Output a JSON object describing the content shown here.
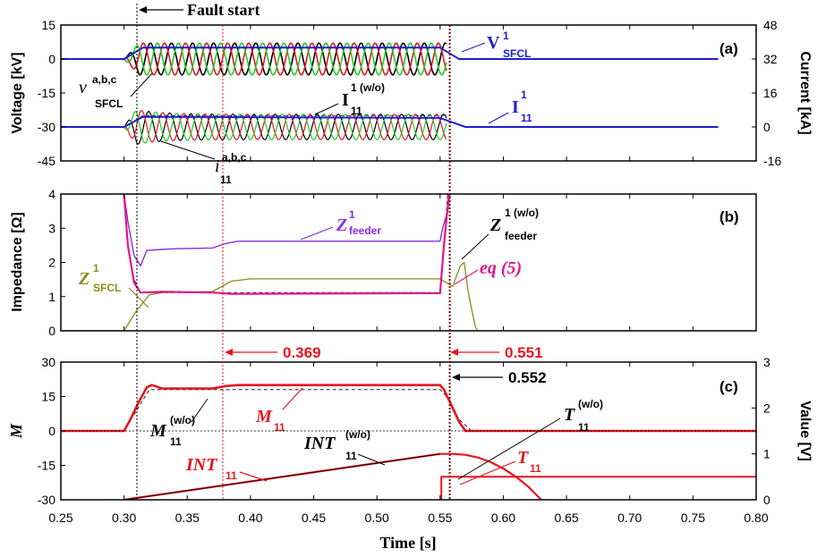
{
  "chart_data": [
    {
      "panel": "(a)",
      "type": "line",
      "ylabel": "Voltage [kV]",
      "ylabel_right": "Current [kA]",
      "xlim": [
        0.25,
        0.8
      ],
      "ylim": [
        -45,
        15
      ],
      "ylim_right": [
        -16,
        48
      ],
      "x_ticks": [
        0.25,
        0.3,
        0.35,
        0.4,
        0.45,
        0.5,
        0.55,
        0.6,
        0.65,
        0.7,
        0.75,
        0.8
      ],
      "y_ticks": [
        "15",
        "0",
        "-15",
        "-30",
        "-45"
      ],
      "y_ticks_right": [
        "48",
        "32",
        "16",
        "0",
        "-16"
      ],
      "fault_label": "Fault start",
      "series": [
        {
          "name": "V1 SFCL",
          "color": "#1f1fcf",
          "x": [
            0.25,
            0.3,
            0.315,
            0.55,
            0.565,
            0.77
          ],
          "y": [
            0,
            0,
            5,
            5,
            0,
            0
          ]
        },
        {
          "name": "I1 11",
          "color": "#1f1fcf",
          "x": [
            0.25,
            0.3,
            0.315,
            0.55,
            0.57,
            0.77
          ],
          "y": [
            -30,
            -30,
            -25.5,
            -26,
            -30,
            -30
          ]
        },
        {
          "name": "I1 11 (w/o)",
          "color": "#333333",
          "x": [
            0.3,
            0.315,
            0.555
          ],
          "y": [
            -30,
            -25,
            -25
          ]
        }
      ],
      "oscillations": {
        "x_start": 0.3,
        "x_end": 0.555,
        "cycles_per_s": 60,
        "voltage_amplitude_kV": 7,
        "current_amplitude_kV": 7,
        "colors": [
          "#000000",
          "#e8141e",
          "#22cc22"
        ]
      },
      "labels": {
        "v_sfcl": {
          "base": "v",
          "sup": "a,b,c",
          "sub": "SFCL"
        },
        "i11": {
          "base": "i",
          "sup": "a,b,c",
          "sub": "11"
        },
        "I11_wo": {
          "base": "I",
          "sup": "1 (w/o)",
          "sub": "11"
        },
        "V1_sfcl": {
          "base": "V",
          "sup": "1",
          "sub": "SFCL"
        },
        "I1_11": {
          "base": "I",
          "sup": "1",
          "sub": "11"
        }
      }
    },
    {
      "panel": "(b)",
      "type": "line",
      "ylabel": "Impedance [Ω]",
      "xlim": [
        0.25,
        0.8
      ],
      "ylim": [
        0,
        4
      ],
      "y_ticks": [
        "4",
        "3",
        "2",
        "1",
        "0"
      ],
      "series": [
        {
          "name": "Z1 feeder",
          "color": "#8a2be2",
          "x": [
            0.3,
            0.303,
            0.308,
            0.313,
            0.318,
            0.33,
            0.34,
            0.37,
            0.38,
            0.39,
            0.55,
            0.552,
            0.556,
            0.558
          ],
          "y": [
            4,
            3.2,
            2.2,
            1.9,
            2.35,
            2.38,
            2.4,
            2.42,
            2.55,
            2.62,
            2.62,
            3.0,
            3.5,
            4
          ]
        },
        {
          "name": "Z1 feeder (w/o)",
          "color": "#333333",
          "x": [
            0.3,
            0.303,
            0.308,
            0.313,
            0.33,
            0.55,
            0.553,
            0.556
          ],
          "y": [
            4,
            2.5,
            1.5,
            1.12,
            1.12,
            1.12,
            2.5,
            4
          ]
        },
        {
          "name": "eq (5)",
          "color": "#e0168c",
          "x": [
            0.3,
            0.303,
            0.308,
            0.313,
            0.33,
            0.37,
            0.385,
            0.55,
            0.553,
            0.557
          ],
          "y": [
            4,
            2.5,
            1.4,
            1.12,
            1.14,
            1.12,
            1.08,
            1.1,
            2.5,
            4
          ]
        },
        {
          "name": "Z1 SFCL",
          "color": "#8b8b1a",
          "x": [
            0.25,
            0.3,
            0.31,
            0.32,
            0.33,
            0.37,
            0.385,
            0.4,
            0.55,
            0.56,
            0.566,
            0.569,
            0.572,
            0.574,
            0.578,
            0.58
          ],
          "y": [
            0,
            0,
            0.6,
            1.05,
            1.12,
            1.15,
            1.45,
            1.52,
            1.52,
            1.3,
            1.9,
            2.0,
            1.2,
            0.8,
            0.1,
            0
          ]
        }
      ],
      "labels": {
        "Z1_feeder": {
          "base": "Z",
          "sup": "1",
          "sub": "feeder"
        },
        "Z1_feeder_wo": {
          "base": "Z",
          "sup": "1 (w/o)",
          "sub": "feeder"
        },
        "eq5": "eq (5)",
        "Z1_sfcl": {
          "base": "Z",
          "sup": "1",
          "sub": "SFCL"
        }
      }
    },
    {
      "panel": "(c)",
      "type": "line",
      "ylabel": "M",
      "ylabel_right": "Value [V]",
      "xlabel": "Time [s]",
      "xlim": [
        0.25,
        0.8
      ],
      "ylim": [
        -30,
        30
      ],
      "ylim_right": [
        0,
        3
      ],
      "x_ticks": [
        0.25,
        0.3,
        0.35,
        0.4,
        0.45,
        0.5,
        0.55,
        0.6,
        0.65,
        0.7,
        0.75,
        0.8
      ],
      "x_tick_labels": [
        "0.25",
        "0.30",
        "0.35",
        "0.40",
        "0.45",
        "0.50",
        "0.55",
        "0.60",
        "0.65",
        "0.70",
        "0.75",
        "0.80"
      ],
      "y_ticks": [
        "30",
        "15",
        "0",
        "-15",
        "-30"
      ],
      "y_ticks_right": [
        "3",
        "2",
        "1",
        "0"
      ],
      "markers": {
        "t1": "0.369",
        "t2": "0.551",
        "t3": "0.552"
      },
      "series": [
        {
          "name": "M11",
          "color": "#e8141e",
          "x": [
            0.25,
            0.3,
            0.305,
            0.312,
            0.318,
            0.322,
            0.33,
            0.37,
            0.38,
            0.39,
            0.55,
            0.553,
            0.56,
            0.565,
            0.57,
            0.8
          ],
          "y": [
            0,
            0,
            5,
            13,
            19,
            20,
            18.5,
            18.5,
            19.5,
            20,
            20,
            18,
            10,
            4,
            0,
            0
          ]
        },
        {
          "name": "M11 (w/o)",
          "color": "#222222",
          "x": [
            0.3,
            0.32,
            0.34,
            0.55,
            0.557,
            0.565,
            0.575
          ],
          "y": [
            0,
            18,
            18,
            18,
            14,
            5,
            0
          ]
        },
        {
          "name": "INT11",
          "color": "#e8141e",
          "x": [
            0.3,
            0.55,
            0.56,
            0.57,
            0.58,
            0.59,
            0.6,
            0.61,
            0.62,
            0.63
          ],
          "y": [
            0,
            1.0,
            1.0,
            0.98,
            0.92,
            0.82,
            0.68,
            0.5,
            0.28,
            0
          ]
        },
        {
          "name": "T11",
          "color": "#e8141e",
          "x": [
            0.551,
            0.551,
            0.8
          ],
          "y": [
            0,
            0.5,
            0.5
          ]
        }
      ],
      "labels": {
        "M11_wo": {
          "base": "M",
          "sup": "(w/o)",
          "sub": "11"
        },
        "M11": {
          "base": "M",
          "sup": "",
          "sub": "11"
        },
        "INT11": {
          "base": "INT",
          "sup": "",
          "sub": "11"
        },
        "INT11_wo": {
          "base": "INT",
          "sup": "(w/o)",
          "sub": "11"
        },
        "T11_wo": {
          "base": "T",
          "sup": "(w/o)",
          "sub": "11"
        },
        "T11": {
          "base": "T",
          "sup": "",
          "sub": "11"
        }
      }
    }
  ]
}
